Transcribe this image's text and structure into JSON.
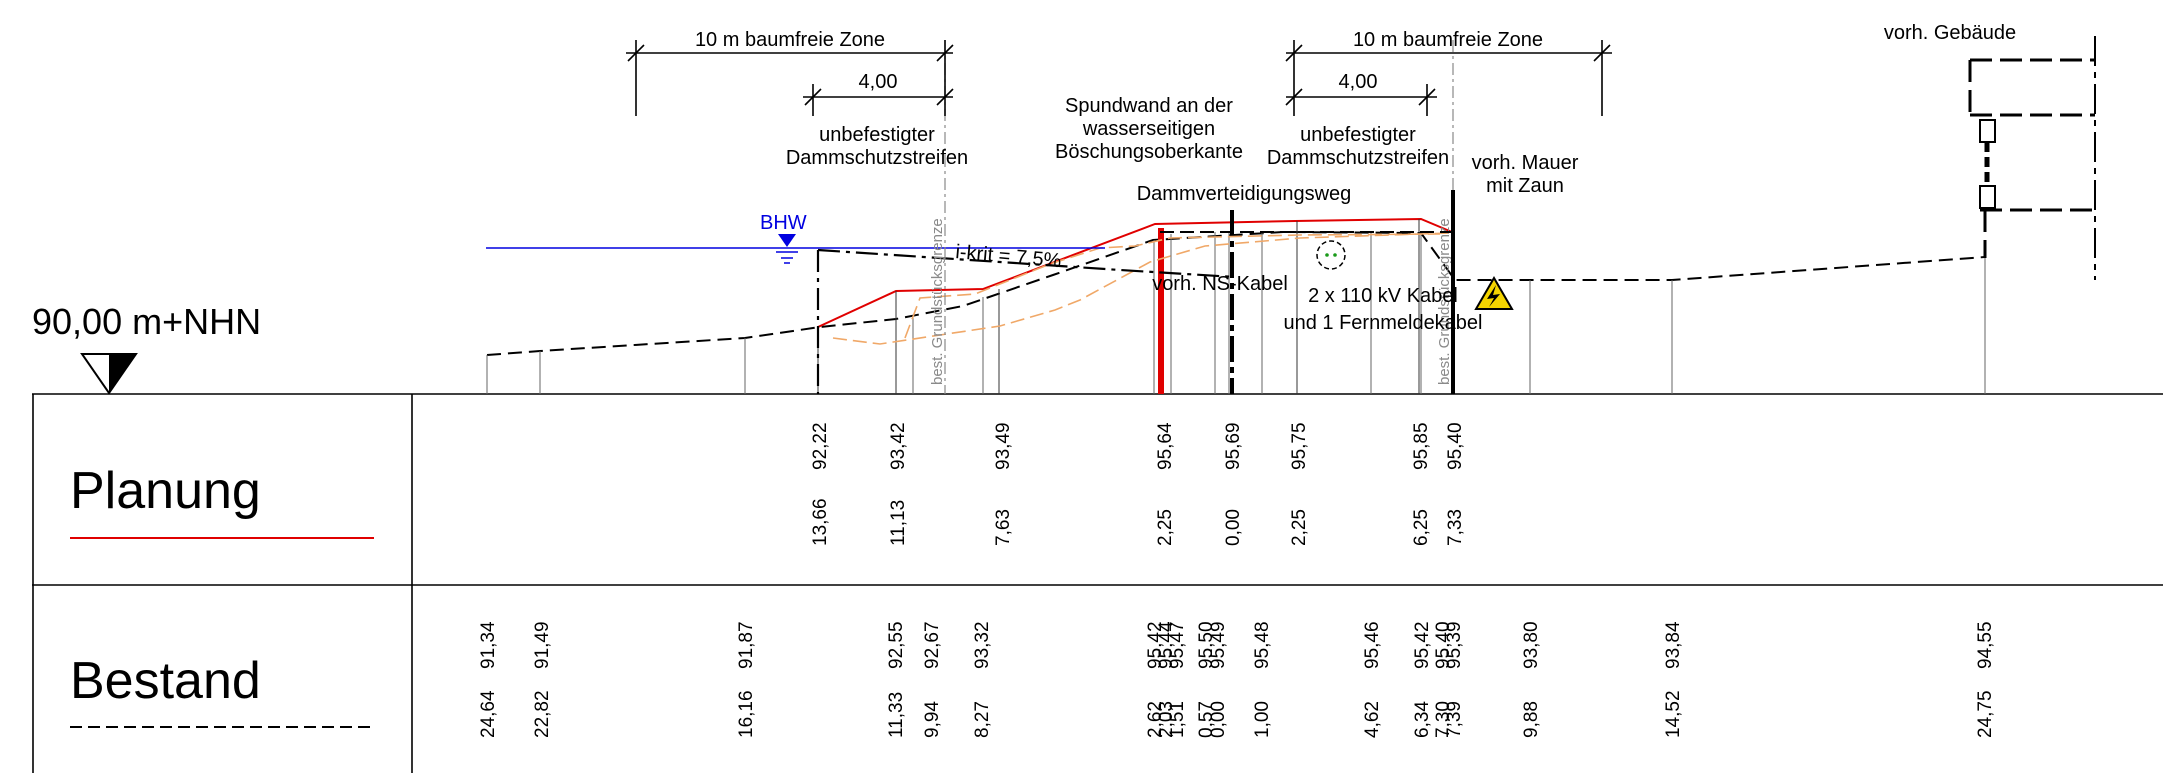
{
  "datum": {
    "label": "90,00 m+NHN"
  },
  "water": {
    "label": "BHW",
    "color": "#0000e0"
  },
  "zones": {
    "left_zone": "10 m baumfreie Zone",
    "left_strip_width": "4,00",
    "left_strip_label": [
      "unbefestigter",
      "Dammschutzstreifen"
    ],
    "right_zone": "10 m baumfreie Zone",
    "right_strip_width": "4,00",
    "right_strip_label": [
      "unbefestigter",
      "Dammschutzstreifen"
    ]
  },
  "annotations": {
    "sheet_pile": [
      "Spundwand an der",
      "wasserseitigen",
      "Böschungsoberkante"
    ],
    "road": "Dammverteidigungsweg",
    "wall": [
      "vorh. Mauer",
      "mit Zaun"
    ],
    "building": "vorh. Gebäude",
    "slope": "i-krit = 7,5%",
    "ns_cable": "vorh. NS-Kabel",
    "cables": [
      "2 x 110 kV Kabel",
      "und 1 Fernmeldekabel"
    ],
    "property_line_left": "best. Grundstücksgrenze",
    "property_line_right": "best. Grundstücksgrenze"
  },
  "colors": {
    "planung": "#e00000",
    "bestand": "#000000",
    "orange": "#f0a868",
    "dim": "#000000"
  },
  "table": {
    "planung": {
      "label": "Planung",
      "heights": [
        "92,22",
        "93,42",
        "93,49",
        "95,64",
        "95,69",
        "95,75",
        "95,85",
        "95,40"
      ],
      "distances": [
        "13,66",
        "11,13",
        "7,63",
        "2,25",
        "0,00",
        "2,25",
        "6,25",
        "7,33"
      ]
    },
    "bestand": {
      "label": "Bestand",
      "heights": [
        "91,34",
        "91,49",
        "91,87",
        "92,55",
        "92,67",
        "93,32",
        "95,42",
        "95,44",
        "95,47",
        "95,50",
        "95,49",
        "95,48",
        "95,46",
        "95,42",
        "95,40",
        "95,39",
        "93,80",
        "93,84",
        "94,55"
      ],
      "distances": [
        "24,64",
        "22,82",
        "16,16",
        "11,33",
        "9,94",
        "8,27",
        "2,62",
        "2,03",
        "1,51",
        "0,57",
        "0,00",
        "1,00",
        "4,62",
        "6,34",
        "7,30",
        "7,39",
        "9,88",
        "14,52",
        "24,75"
      ]
    }
  }
}
